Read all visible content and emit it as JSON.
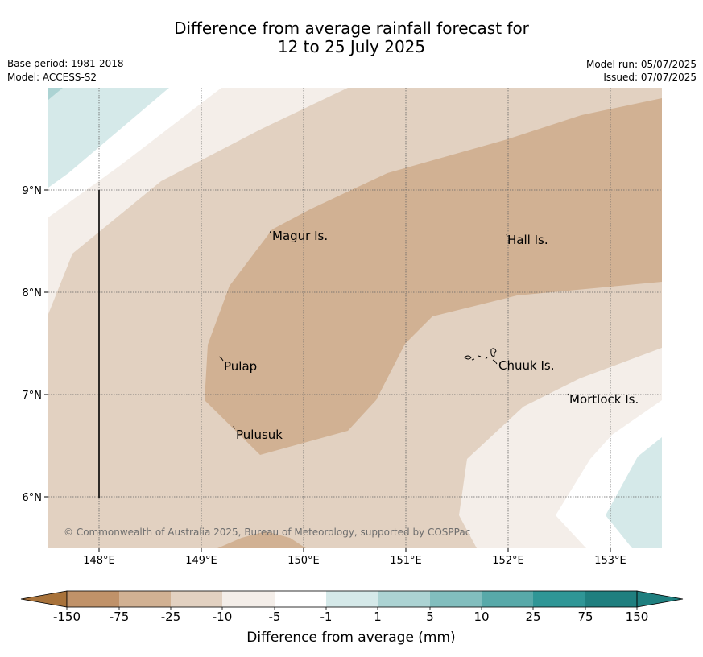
{
  "title": {
    "line1": "Difference from average rainfall forecast for",
    "line2": "12 to 25 July 2025"
  },
  "meta": {
    "base_period": "Base period: 1981-2018",
    "model": "Model: ACCESS-S2",
    "model_run": "Model run: 05/07/2025",
    "issued": "Issued: 07/07/2025"
  },
  "map": {
    "x_ticks": [
      "148°E",
      "149°E",
      "150°E",
      "151°E",
      "152°E",
      "153°E"
    ],
    "y_ticks": [
      "9°N",
      "8°N",
      "7°N",
      "6°N"
    ],
    "places": [
      "Magur Is.",
      "Hall Is.",
      "Pulap",
      "Chuuk Is.",
      "Mortlock Is.",
      "Pulusuk"
    ],
    "copyright": "© Commonwealth of Australia 2025, Bureau of Meteorology, supported by COSPPac"
  },
  "colorbar": {
    "labels": [
      "-150",
      "-75",
      "-25",
      "-10",
      "-5",
      "-1",
      "1",
      "5",
      "10",
      "25",
      "75",
      "150"
    ],
    "colors": [
      "#a8723a",
      "#c09269",
      "#d1b193",
      "#e2d1c1",
      "#f4eee9",
      "#ffffff",
      "#d5e9e9",
      "#acd3d3",
      "#82bebe",
      "#58a9a9",
      "#2f9696",
      "#1f7f7f"
    ],
    "title": "Difference from average (mm)"
  }
}
